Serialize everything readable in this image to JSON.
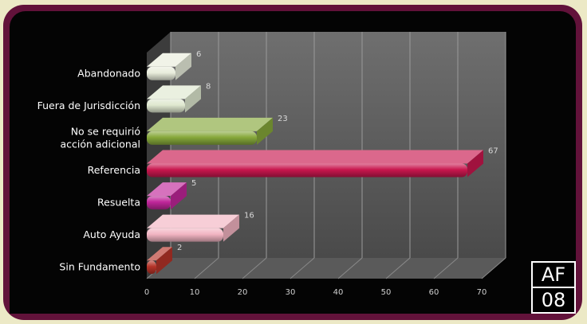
{
  "chart_data": {
    "type": "bar",
    "orientation": "horizontal",
    "style": "3d",
    "categories": [
      "Abandonado",
      "Fuera de Jurisdicción",
      "No se requirió acción adicional",
      "Referencia",
      "Resuelta",
      "Auto Ayuda",
      "Sin Fundamento"
    ],
    "category_lines": [
      [
        "Abandonado"
      ],
      [
        "Fuera de Jurisdicción"
      ],
      [
        "No se requirió",
        "acción adicional"
      ],
      [
        "Referencia"
      ],
      [
        "Resuelta"
      ],
      [
        "Auto Ayuda"
      ],
      [
        "Sin Fundamento"
      ]
    ],
    "values": [
      6,
      8,
      23,
      67,
      5,
      16,
      2
    ],
    "colors": [
      "#e9eddc",
      "#dfe8cf",
      "#86a83a",
      "#c8174e",
      "#c0269a",
      "#f2b4c2",
      "#b53328"
    ],
    "data_labels": [
      "6",
      "8",
      "23",
      "67",
      "5",
      "16",
      "2"
    ],
    "x_ticks": [
      "0",
      "10",
      "20",
      "30",
      "40",
      "50",
      "60",
      "70"
    ],
    "xlim": [
      0,
      70
    ],
    "grid": true,
    "title": "",
    "xlabel": "",
    "ylabel": ""
  },
  "badge": {
    "line1": "AF",
    "line2": "08"
  }
}
